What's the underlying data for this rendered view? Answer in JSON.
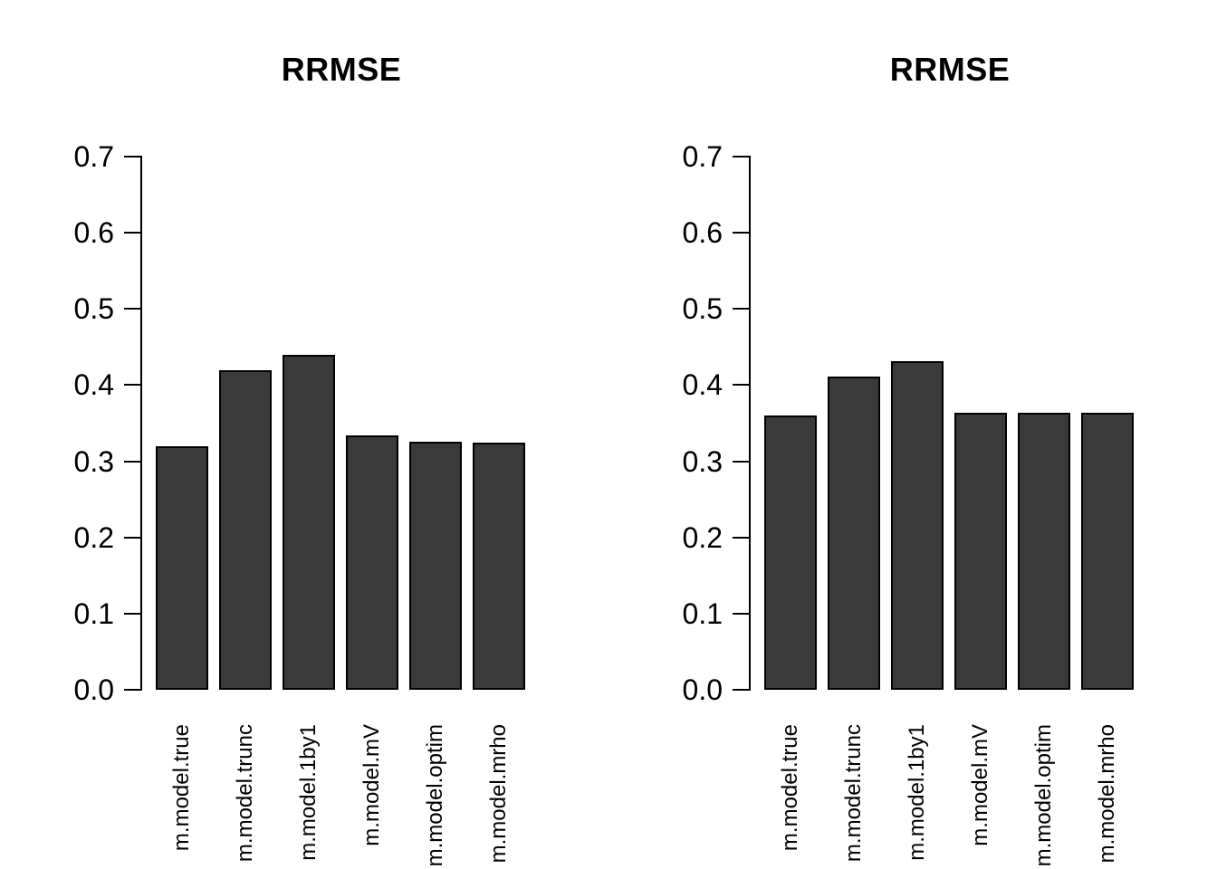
{
  "figure": {
    "background": "#ffffff",
    "text_color": "#000000"
  },
  "chart_data": [
    {
      "type": "bar",
      "title": "RRMSE",
      "categories": [
        "m.model.true",
        "m.model.trunc",
        "m.model.1by1",
        "m.model.mV",
        "m.model.optim",
        "m.model.mrho"
      ],
      "values": [
        0.32,
        0.42,
        0.44,
        0.334,
        0.326,
        0.325
      ],
      "xlabel": "",
      "ylabel": "",
      "ylim": [
        0,
        0.7
      ],
      "y_tick_labels": [
        "0.0",
        "0.1",
        "0.2",
        "0.3",
        "0.4",
        "0.5",
        "0.6",
        "0.7"
      ],
      "grid": false,
      "legend_position": "none",
      "bar_fill": "#3a3a3a",
      "bar_border": "#000000"
    },
    {
      "type": "bar",
      "title": "RRMSE",
      "categories": [
        "m.model.true",
        "m.model.trunc",
        "m.model.1by1",
        "m.model.mV",
        "m.model.optim",
        "m.model.mrho"
      ],
      "values": [
        0.36,
        0.411,
        0.432,
        0.364,
        0.364,
        0.364
      ],
      "xlabel": "",
      "ylabel": "",
      "ylim": [
        0,
        0.7
      ],
      "y_tick_labels": [
        "0.0",
        "0.1",
        "0.2",
        "0.3",
        "0.4",
        "0.5",
        "0.6",
        "0.7"
      ],
      "grid": false,
      "legend_position": "none",
      "bar_fill": "#3a3a3a",
      "bar_border": "#000000"
    }
  ]
}
